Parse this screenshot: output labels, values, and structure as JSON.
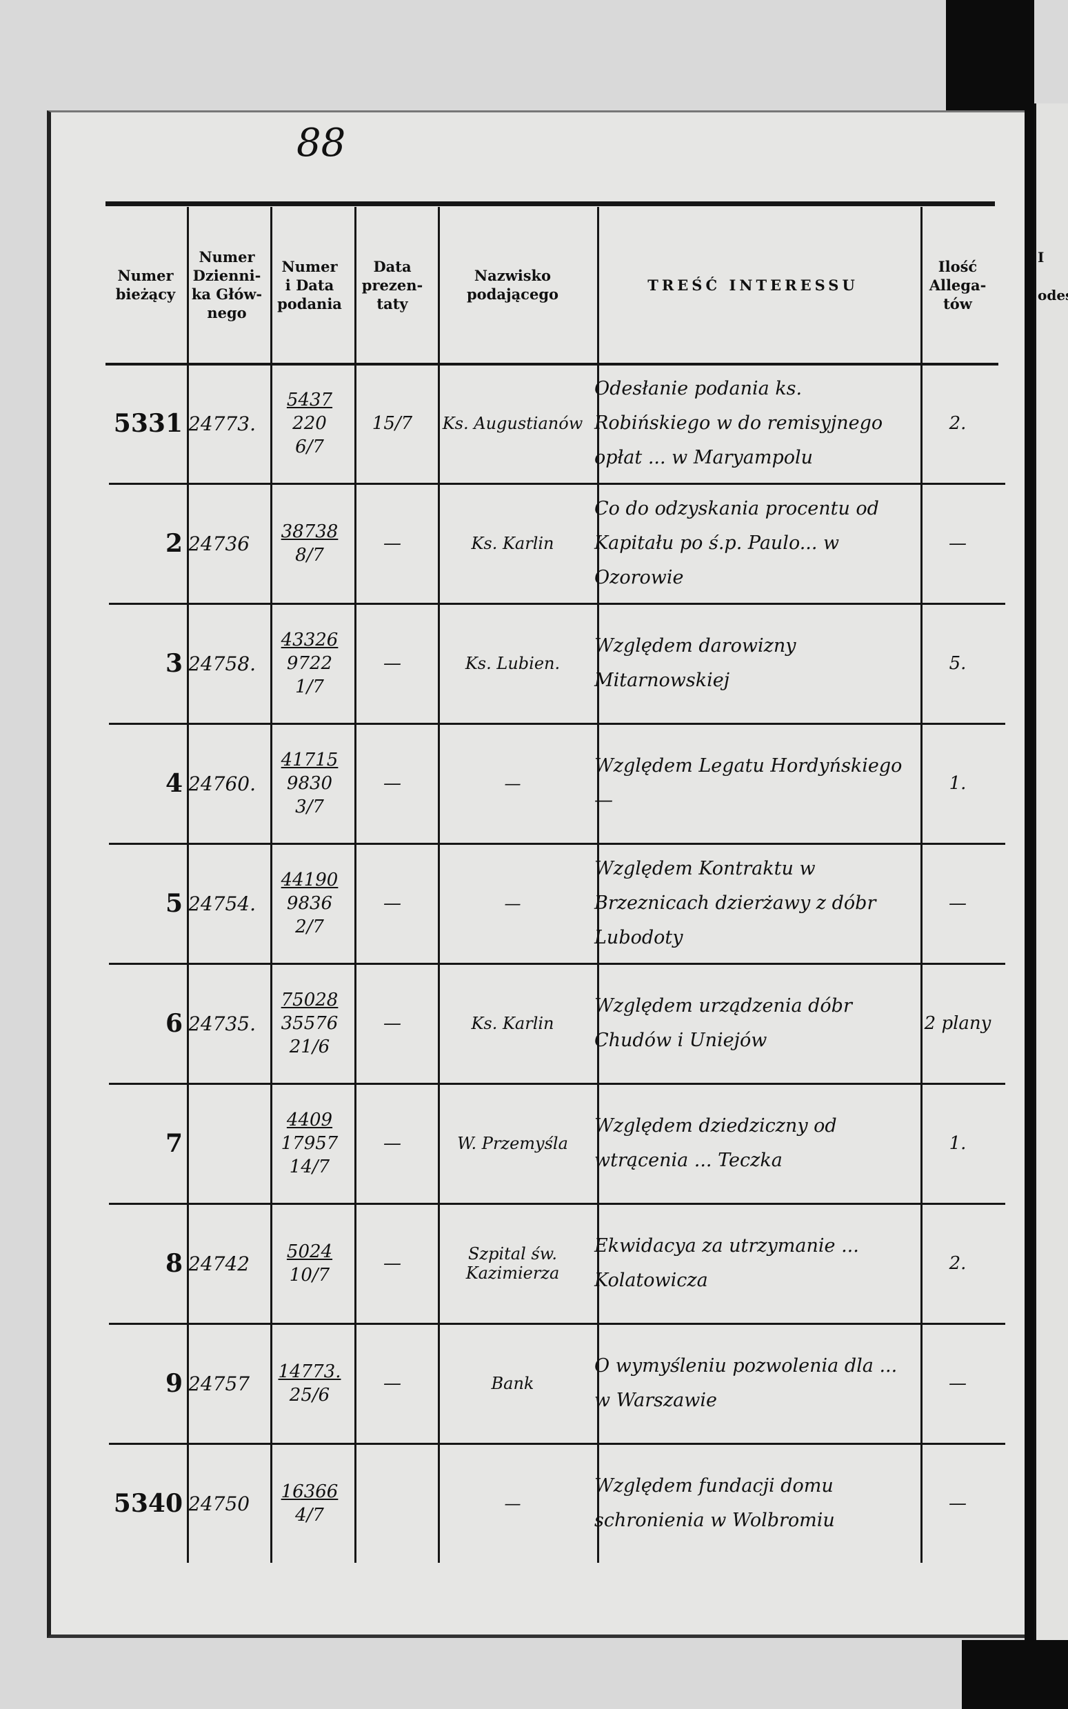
{
  "page_number": "88",
  "next_page_fragment": [
    "I",
    "odes"
  ],
  "table": {
    "columns": [
      [
        "Numer",
        "bieżący"
      ],
      [
        "Numer",
        "Dzienni-",
        "ka Głów-",
        "nego"
      ],
      [
        "Numer",
        "i Data",
        "podania"
      ],
      [
        "Data",
        "prezen-",
        "taty"
      ],
      [
        "Nazwisko",
        "podającego"
      ],
      [
        "TREŚĆ INTERESSU"
      ],
      [
        "Ilość",
        "Allega-",
        "tów"
      ]
    ],
    "rows": [
      {
        "numer": "5331",
        "dziennik": "24773.",
        "numer_data": [
          "5437",
          "220",
          "6/7"
        ],
        "data_prezentaty": "15/7",
        "nazwisko": "Ks. Augustianów",
        "tresc": "Odesłanie podania ks. Robińskiego w do remisyjnego opłat ... w Maryampolu",
        "allegaty": "2."
      },
      {
        "numer": "2",
        "dziennik": "24736",
        "numer_data": [
          "38738",
          "8/7"
        ],
        "data_prezentaty": "—",
        "nazwisko": "Ks. Karlin",
        "tresc": "Co do odzyskania procentu od Kapitału po ś.p. Paulo... w Ozorowie",
        "allegaty": "—"
      },
      {
        "numer": "3",
        "dziennik": "24758.",
        "numer_data": [
          "43326",
          "9722",
          "1/7"
        ],
        "data_prezentaty": "—",
        "nazwisko": "Ks. Lubien.",
        "tresc": "Względem darowizny Mitarnowskiej",
        "allegaty": "5."
      },
      {
        "numer": "4",
        "dziennik": "24760.",
        "numer_data": [
          "41715",
          "9830",
          "3/7"
        ],
        "data_prezentaty": "—",
        "nazwisko": "—",
        "tresc": "Względem Legatu Hordyńskiego —",
        "allegaty": "1."
      },
      {
        "numer": "5",
        "dziennik": "24754.",
        "numer_data": [
          "44190",
          "9836",
          "2/7"
        ],
        "data_prezentaty": "—",
        "nazwisko": "—",
        "tresc": "Względem Kontraktu w Brzeznicach dzierżawy z dóbr Lubodoty",
        "allegaty": "—"
      },
      {
        "numer": "6",
        "dziennik": "24735.",
        "numer_data": [
          "75028",
          "35576",
          "21/6"
        ],
        "data_prezentaty": "—",
        "nazwisko": "Ks. Karlin",
        "tresc": "Względem urządzenia dóbr Chudów i Uniejów",
        "allegaty": "2 plany"
      },
      {
        "numer": "7",
        "numer_data": [
          "4409",
          "17957",
          "14/7"
        ],
        "data_prezentaty": "—",
        "nazwisko": "W. Przemyśla",
        "tresc": "Względem dziedziczny od wtrącenia ... Teczka",
        "allegaty": "1."
      },
      {
        "numer": "8",
        "dziennik": "24742",
        "numer_data": [
          "5024",
          "10/7"
        ],
        "data_prezentaty": "—",
        "nazwisko": "Szpital św. Kazimierza",
        "tresc": "Ekwidacya za utrzymanie ... Kolatowicza",
        "allegaty": "2."
      },
      {
        "numer": "9",
        "dziennik": "24757",
        "numer_data": [
          "14773.",
          "25/6"
        ],
        "data_prezentaty": "—",
        "nazwisko": "Bank",
        "tresc": "O wymyśleniu pozwolenia dla ... w Warszawie",
        "allegaty": "—"
      },
      {
        "numer": "5340",
        "dziennik": "24750",
        "numer_data": [
          "16366",
          "4/7"
        ],
        "nazwisko": "—",
        "tresc": "Względem fundacji domu schronienia w Wolbromiu",
        "allegaty": "—"
      }
    ]
  }
}
